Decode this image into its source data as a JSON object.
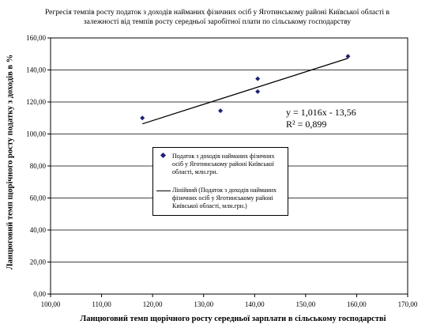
{
  "chart_data": {
    "type": "scatter",
    "title": "Регресія темпів росту податок з доходів найманих фізичних осіб у Яготинському районі Київської області в залежності від темпів росту середньої заробітної плати по сільському господарству",
    "xlabel": "Ланцюговий темп щорічного росту середньої зарплати в сільському господарстві",
    "ylabel": "Ланцюговий темп щорічного росту податку з доходів в %",
    "xlim": [
      100,
      170
    ],
    "ylim": [
      0,
      160
    ],
    "x_ticks": [
      "100,00",
      "110,00",
      "120,00",
      "130,00",
      "140,00",
      "150,00",
      "160,00",
      "170,00"
    ],
    "y_ticks": [
      "0,00",
      "20,00",
      "40,00",
      "60,00",
      "80,00",
      "100,00",
      "120,00",
      "140,00",
      "160,00"
    ],
    "grid": "horizontal",
    "series": [
      {
        "name": "Податок з доходів найманих фізичних осіб у Яготинському районі Київської області, млн.грн.",
        "color": "#1f1f7a",
        "points": [
          {
            "x": 118.0,
            "y": 110.0
          },
          {
            "x": 133.3,
            "y": 114.5
          },
          {
            "x": 140.6,
            "y": 126.5
          },
          {
            "x": 140.6,
            "y": 134.5
          },
          {
            "x": 158.3,
            "y": 148.5
          }
        ]
      }
    ],
    "trendline": {
      "name": "Лінійний (Податок з доходів найманих фізичних осіб у Яготинському районі Київської області, млн.грн.)",
      "slope": 1.016,
      "intercept": -13.56,
      "x_range": [
        118.0,
        158.3
      ]
    },
    "equation": "y = 1,016x - 13,56",
    "r_squared": "R² = 0,899"
  }
}
